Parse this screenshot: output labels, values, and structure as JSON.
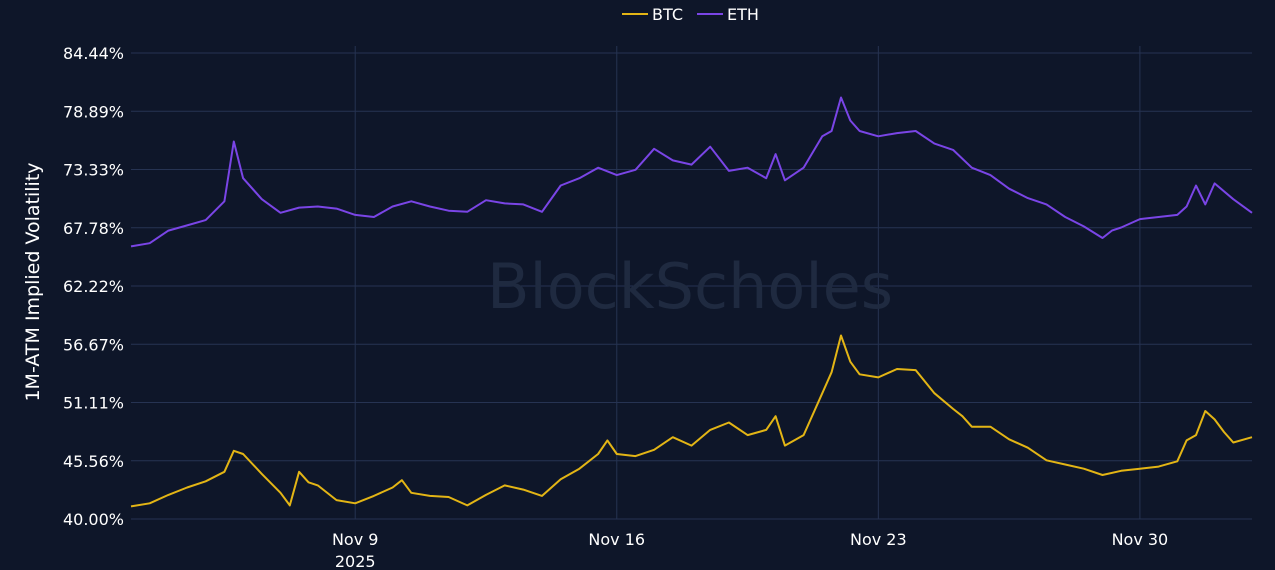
{
  "chart_data": {
    "type": "line",
    "ylabel": "1M-ATM Implied Volatility",
    "y_ticks": [
      "40.00%",
      "45.56%",
      "51.11%",
      "56.67%",
      "62.22%",
      "67.78%",
      "73.33%",
      "78.89%",
      "84.44%"
    ],
    "ylim": [
      40.0,
      84.44
    ],
    "x_ticks": [
      {
        "date": "2025-11-09",
        "label": "Nov 9",
        "sublabel": "2025"
      },
      {
        "date": "2025-11-16",
        "label": "Nov 16",
        "sublabel": ""
      },
      {
        "date": "2025-11-23",
        "label": "Nov 23",
        "sublabel": ""
      },
      {
        "date": "2025-11-30",
        "label": "Nov 30",
        "sublabel": ""
      }
    ],
    "xlim": [
      "2025-11-03T00:00",
      "2025-12-03T00:00"
    ],
    "grid": true,
    "legend_position": "top-center",
    "watermark": "BlockScholes",
    "series": [
      {
        "name": "BTC",
        "color": "#e3b515",
        "points": [
          [
            "2025-11-03T00:00",
            41.2
          ],
          [
            "2025-11-03T12:00",
            41.5
          ],
          [
            "2025-11-04T00:00",
            42.3
          ],
          [
            "2025-11-04T12:00",
            43.0
          ],
          [
            "2025-11-05T00:00",
            43.6
          ],
          [
            "2025-11-05T12:00",
            44.5
          ],
          [
            "2025-11-05T18:00",
            46.5
          ],
          [
            "2025-11-06T00:00",
            46.2
          ],
          [
            "2025-11-06T12:00",
            44.3
          ],
          [
            "2025-11-07T00:00",
            42.5
          ],
          [
            "2025-11-07T06:00",
            41.3
          ],
          [
            "2025-11-07T12:00",
            44.5
          ],
          [
            "2025-11-07T18:00",
            43.5
          ],
          [
            "2025-11-08T00:00",
            43.2
          ],
          [
            "2025-11-08T12:00",
            41.8
          ],
          [
            "2025-11-09T00:00",
            41.5
          ],
          [
            "2025-11-09T12:00",
            42.2
          ],
          [
            "2025-11-10T00:00",
            43.0
          ],
          [
            "2025-11-10T06:00",
            43.7
          ],
          [
            "2025-11-10T12:00",
            42.5
          ],
          [
            "2025-11-11T00:00",
            42.2
          ],
          [
            "2025-11-11T12:00",
            42.1
          ],
          [
            "2025-11-12T00:00",
            41.3
          ],
          [
            "2025-11-12T12:00",
            42.3
          ],
          [
            "2025-11-13T00:00",
            43.2
          ],
          [
            "2025-11-13T12:00",
            42.8
          ],
          [
            "2025-11-14T00:00",
            42.2
          ],
          [
            "2025-11-14T12:00",
            43.8
          ],
          [
            "2025-11-15T00:00",
            44.8
          ],
          [
            "2025-11-15T12:00",
            46.2
          ],
          [
            "2025-11-15T18:00",
            47.5
          ],
          [
            "2025-11-16T00:00",
            46.2
          ],
          [
            "2025-11-16T12:00",
            46.0
          ],
          [
            "2025-11-17T00:00",
            46.6
          ],
          [
            "2025-11-17T12:00",
            47.8
          ],
          [
            "2025-11-18T00:00",
            47.0
          ],
          [
            "2025-11-18T12:00",
            48.5
          ],
          [
            "2025-11-19T00:00",
            49.2
          ],
          [
            "2025-11-19T12:00",
            48.0
          ],
          [
            "2025-11-20T00:00",
            48.5
          ],
          [
            "2025-11-20T06:00",
            49.8
          ],
          [
            "2025-11-20T12:00",
            47.0
          ],
          [
            "2025-11-21T00:00",
            48.0
          ],
          [
            "2025-11-21T12:00",
            52.0
          ],
          [
            "2025-11-21T18:00",
            54.0
          ],
          [
            "2025-11-22T00:00",
            57.5
          ],
          [
            "2025-11-22T06:00",
            55.0
          ],
          [
            "2025-11-22T12:00",
            53.8
          ],
          [
            "2025-11-23T00:00",
            53.5
          ],
          [
            "2025-11-23T12:00",
            54.3
          ],
          [
            "2025-11-24T00:00",
            54.2
          ],
          [
            "2025-11-24T12:00",
            52.0
          ],
          [
            "2025-11-25T00:00",
            50.5
          ],
          [
            "2025-11-25T06:00",
            49.8
          ],
          [
            "2025-11-25T12:00",
            48.8
          ],
          [
            "2025-11-26T00:00",
            48.8
          ],
          [
            "2025-11-26T12:00",
            47.6
          ],
          [
            "2025-11-27T00:00",
            46.8
          ],
          [
            "2025-11-27T12:00",
            45.6
          ],
          [
            "2025-11-28T00:00",
            45.2
          ],
          [
            "2025-11-28T12:00",
            44.8
          ],
          [
            "2025-11-29T00:00",
            44.2
          ],
          [
            "2025-11-29T12:00",
            44.6
          ],
          [
            "2025-11-30T00:00",
            44.8
          ],
          [
            "2025-11-30T12:00",
            45.0
          ],
          [
            "2025-12-01T00:00",
            45.5
          ],
          [
            "2025-12-01T06:00",
            47.5
          ],
          [
            "2025-12-01T12:00",
            48.0
          ],
          [
            "2025-12-01T18:00",
            50.3
          ],
          [
            "2025-12-02T00:00",
            49.5
          ],
          [
            "2025-12-02T06:00",
            48.3
          ],
          [
            "2025-12-02T12:00",
            47.3
          ],
          [
            "2025-12-03T00:00",
            47.8
          ]
        ]
      },
      {
        "name": "ETH",
        "color": "#7a45e6",
        "points": [
          [
            "2025-11-03T00:00",
            66.0
          ],
          [
            "2025-11-03T12:00",
            66.3
          ],
          [
            "2025-11-04T00:00",
            67.5
          ],
          [
            "2025-11-04T12:00",
            68.0
          ],
          [
            "2025-11-05T00:00",
            68.5
          ],
          [
            "2025-11-05T12:00",
            70.3
          ],
          [
            "2025-11-05T18:00",
            76.0
          ],
          [
            "2025-11-06T00:00",
            72.5
          ],
          [
            "2025-11-06T12:00",
            70.5
          ],
          [
            "2025-11-07T00:00",
            69.2
          ],
          [
            "2025-11-07T12:00",
            69.7
          ],
          [
            "2025-11-08T00:00",
            69.8
          ],
          [
            "2025-11-08T12:00",
            69.6
          ],
          [
            "2025-11-09T00:00",
            69.0
          ],
          [
            "2025-11-09T12:00",
            68.8
          ],
          [
            "2025-11-10T00:00",
            69.8
          ],
          [
            "2025-11-10T12:00",
            70.3
          ],
          [
            "2025-11-11T00:00",
            69.8
          ],
          [
            "2025-11-11T12:00",
            69.4
          ],
          [
            "2025-11-12T00:00",
            69.3
          ],
          [
            "2025-11-12T12:00",
            70.4
          ],
          [
            "2025-11-13T00:00",
            70.1
          ],
          [
            "2025-11-13T12:00",
            70.0
          ],
          [
            "2025-11-14T00:00",
            69.3
          ],
          [
            "2025-11-14T12:00",
            71.8
          ],
          [
            "2025-11-15T00:00",
            72.5
          ],
          [
            "2025-11-15T12:00",
            73.5
          ],
          [
            "2025-11-16T00:00",
            72.8
          ],
          [
            "2025-11-16T12:00",
            73.3
          ],
          [
            "2025-11-17T00:00",
            75.3
          ],
          [
            "2025-11-17T12:00",
            74.2
          ],
          [
            "2025-11-18T00:00",
            73.8
          ],
          [
            "2025-11-18T12:00",
            75.5
          ],
          [
            "2025-11-19T00:00",
            73.2
          ],
          [
            "2025-11-19T12:00",
            73.5
          ],
          [
            "2025-11-20T00:00",
            72.5
          ],
          [
            "2025-11-20T06:00",
            74.8
          ],
          [
            "2025-11-20T12:00",
            72.3
          ],
          [
            "2025-11-21T00:00",
            73.5
          ],
          [
            "2025-11-21T12:00",
            76.5
          ],
          [
            "2025-11-21T18:00",
            77.0
          ],
          [
            "2025-11-22T00:00",
            80.2
          ],
          [
            "2025-11-22T06:00",
            78.0
          ],
          [
            "2025-11-22T12:00",
            77.0
          ],
          [
            "2025-11-23T00:00",
            76.5
          ],
          [
            "2025-11-23T12:00",
            76.8
          ],
          [
            "2025-11-24T00:00",
            77.0
          ],
          [
            "2025-11-24T12:00",
            75.8
          ],
          [
            "2025-11-25T00:00",
            75.2
          ],
          [
            "2025-11-25T12:00",
            73.5
          ],
          [
            "2025-11-26T00:00",
            72.8
          ],
          [
            "2025-11-26T12:00",
            71.5
          ],
          [
            "2025-11-27T00:00",
            70.6
          ],
          [
            "2025-11-27T12:00",
            70.0
          ],
          [
            "2025-11-28T00:00",
            68.8
          ],
          [
            "2025-11-28T12:00",
            67.9
          ],
          [
            "2025-11-29T00:00",
            66.8
          ],
          [
            "2025-11-29T06:00",
            67.5
          ],
          [
            "2025-11-29T12:00",
            67.8
          ],
          [
            "2025-11-30T00:00",
            68.6
          ],
          [
            "2025-11-30T12:00",
            68.8
          ],
          [
            "2025-12-01T00:00",
            69.0
          ],
          [
            "2025-12-01T06:00",
            69.8
          ],
          [
            "2025-12-01T12:00",
            71.8
          ],
          [
            "2025-12-01T18:00",
            70.0
          ],
          [
            "2025-12-02T00:00",
            72.0
          ],
          [
            "2025-12-02T12:00",
            70.5
          ],
          [
            "2025-12-03T00:00",
            69.2
          ]
        ]
      }
    ]
  }
}
